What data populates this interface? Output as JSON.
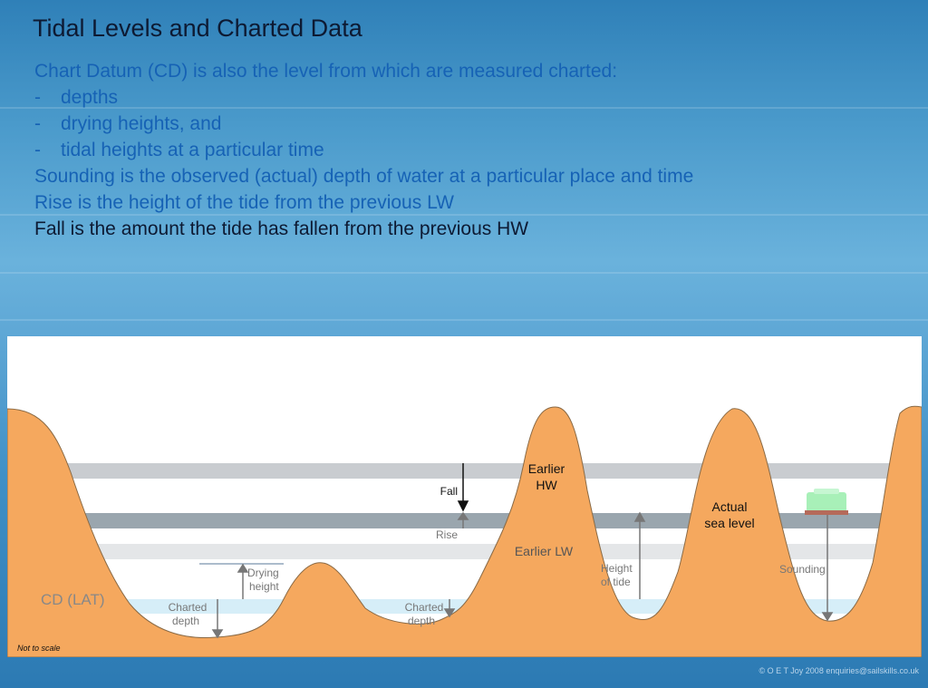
{
  "slide": {
    "title": "Tidal Levels and Charted Data",
    "lines": [
      {
        "dash": "",
        "text": "Chart Datum (CD) is also the level from which are measured charted:"
      },
      {
        "dash": "-",
        "text": "depths"
      },
      {
        "dash": "-",
        "text": "drying heights, and"
      },
      {
        "dash": "-",
        "text": "tidal heights at a particular time"
      },
      {
        "dash": "",
        "text": "Sounding is the observed (actual) depth of water at a particular place and time"
      },
      {
        "dash": "",
        "text": "Rise is the height of the tide from the previous LW"
      },
      {
        "dash": "",
        "text": "Fall is the amount the tide has fallen from the previous HW"
      }
    ]
  },
  "diagram": {
    "labels": {
      "fall": "Fall",
      "earlier_hw_1": "Earlier",
      "earlier_hw_2": "HW",
      "rise": "Rise",
      "earlier_lw": "Earlier LW",
      "actual_sea_level_1": "Actual",
      "actual_sea_level_2": "sea level",
      "drying_height_1": "Drying",
      "drying_height_2": "height",
      "height_of_tide_1": "Height",
      "height_of_tide_2": "of tide",
      "sounding": "Sounding",
      "cd_lat": "CD (LAT)",
      "charted_depth_a_1": "Charted",
      "charted_depth_a_2": "depth",
      "charted_depth_b_1": "Charted",
      "charted_depth_b_2": "depth",
      "not_to_scale": "Not to scale"
    },
    "colors": {
      "seabed": "#f5a85e",
      "earlier_hw_band": "#c9ccd0",
      "actual_sea_band": "#9aa6ae",
      "earlier_lw_band": "#e4e6e8",
      "cd_band": "#d6eef8",
      "boat": "#a8f0b8"
    }
  },
  "footer": {
    "copyright": "© O E T Joy 2008 enquiries@sailskills.co.uk"
  }
}
